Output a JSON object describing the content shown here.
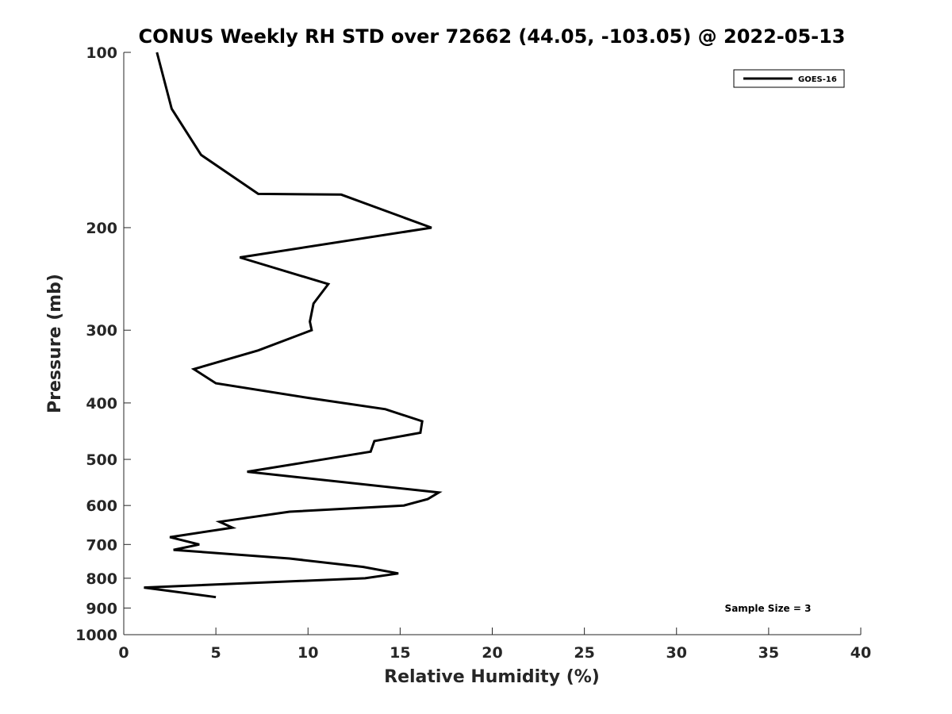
{
  "chart_data": {
    "type": "line",
    "title": "CONUS Weekly RH STD over 72662 (44.05, -103.05) @ 2022-05-13",
    "xlabel": "Relative Humidity (%)",
    "ylabel": "Pressure (mb)",
    "xlim": [
      0,
      40
    ],
    "ylim": [
      100,
      1000
    ],
    "y_scale": "log",
    "y_direction": "reversed",
    "x_ticks": [
      "0",
      "5",
      "10",
      "15",
      "20",
      "25",
      "30",
      "35",
      "40"
    ],
    "y_ticks": [
      "100",
      "200",
      "300",
      "400",
      "500",
      "600",
      "700",
      "800",
      "900",
      "1000"
    ],
    "legend_position": "top-right",
    "annotation": "Sample Size = 3",
    "series": [
      {
        "name": "GOES-16",
        "color": "#000000",
        "points": [
          {
            "x": 1.8,
            "p": 100
          },
          {
            "x": 2.6,
            "p": 125
          },
          {
            "x": 4.2,
            "p": 150
          },
          {
            "x": 7.3,
            "p": 175
          },
          {
            "x": 11.8,
            "p": 175.5
          },
          {
            "x": 16.7,
            "p": 200
          },
          {
            "x": 6.3,
            "p": 225
          },
          {
            "x": 11.1,
            "p": 250
          },
          {
            "x": 10.3,
            "p": 270
          },
          {
            "x": 10.1,
            "p": 290
          },
          {
            "x": 10.2,
            "p": 300
          },
          {
            "x": 7.3,
            "p": 325
          },
          {
            "x": 3.8,
            "p": 350
          },
          {
            "x": 5.0,
            "p": 370
          },
          {
            "x": 10.0,
            "p": 392
          },
          {
            "x": 14.2,
            "p": 410
          },
          {
            "x": 16.2,
            "p": 430
          },
          {
            "x": 16.1,
            "p": 450
          },
          {
            "x": 13.6,
            "p": 465
          },
          {
            "x": 13.4,
            "p": 485
          },
          {
            "x": 10.0,
            "p": 505
          },
          {
            "x": 6.7,
            "p": 525
          },
          {
            "x": 17.1,
            "p": 570
          },
          {
            "x": 16.5,
            "p": 585
          },
          {
            "x": 15.2,
            "p": 600
          },
          {
            "x": 9.0,
            "p": 615
          },
          {
            "x": 5.2,
            "p": 640
          },
          {
            "x": 5.9,
            "p": 655
          },
          {
            "x": 2.5,
            "p": 680
          },
          {
            "x": 4.1,
            "p": 700
          },
          {
            "x": 2.7,
            "p": 715
          },
          {
            "x": 9.0,
            "p": 740
          },
          {
            "x": 13.0,
            "p": 765
          },
          {
            "x": 14.9,
            "p": 785
          },
          {
            "x": 13.1,
            "p": 800
          },
          {
            "x": 1.1,
            "p": 830
          },
          {
            "x": 5.0,
            "p": 862
          }
        ]
      }
    ]
  }
}
